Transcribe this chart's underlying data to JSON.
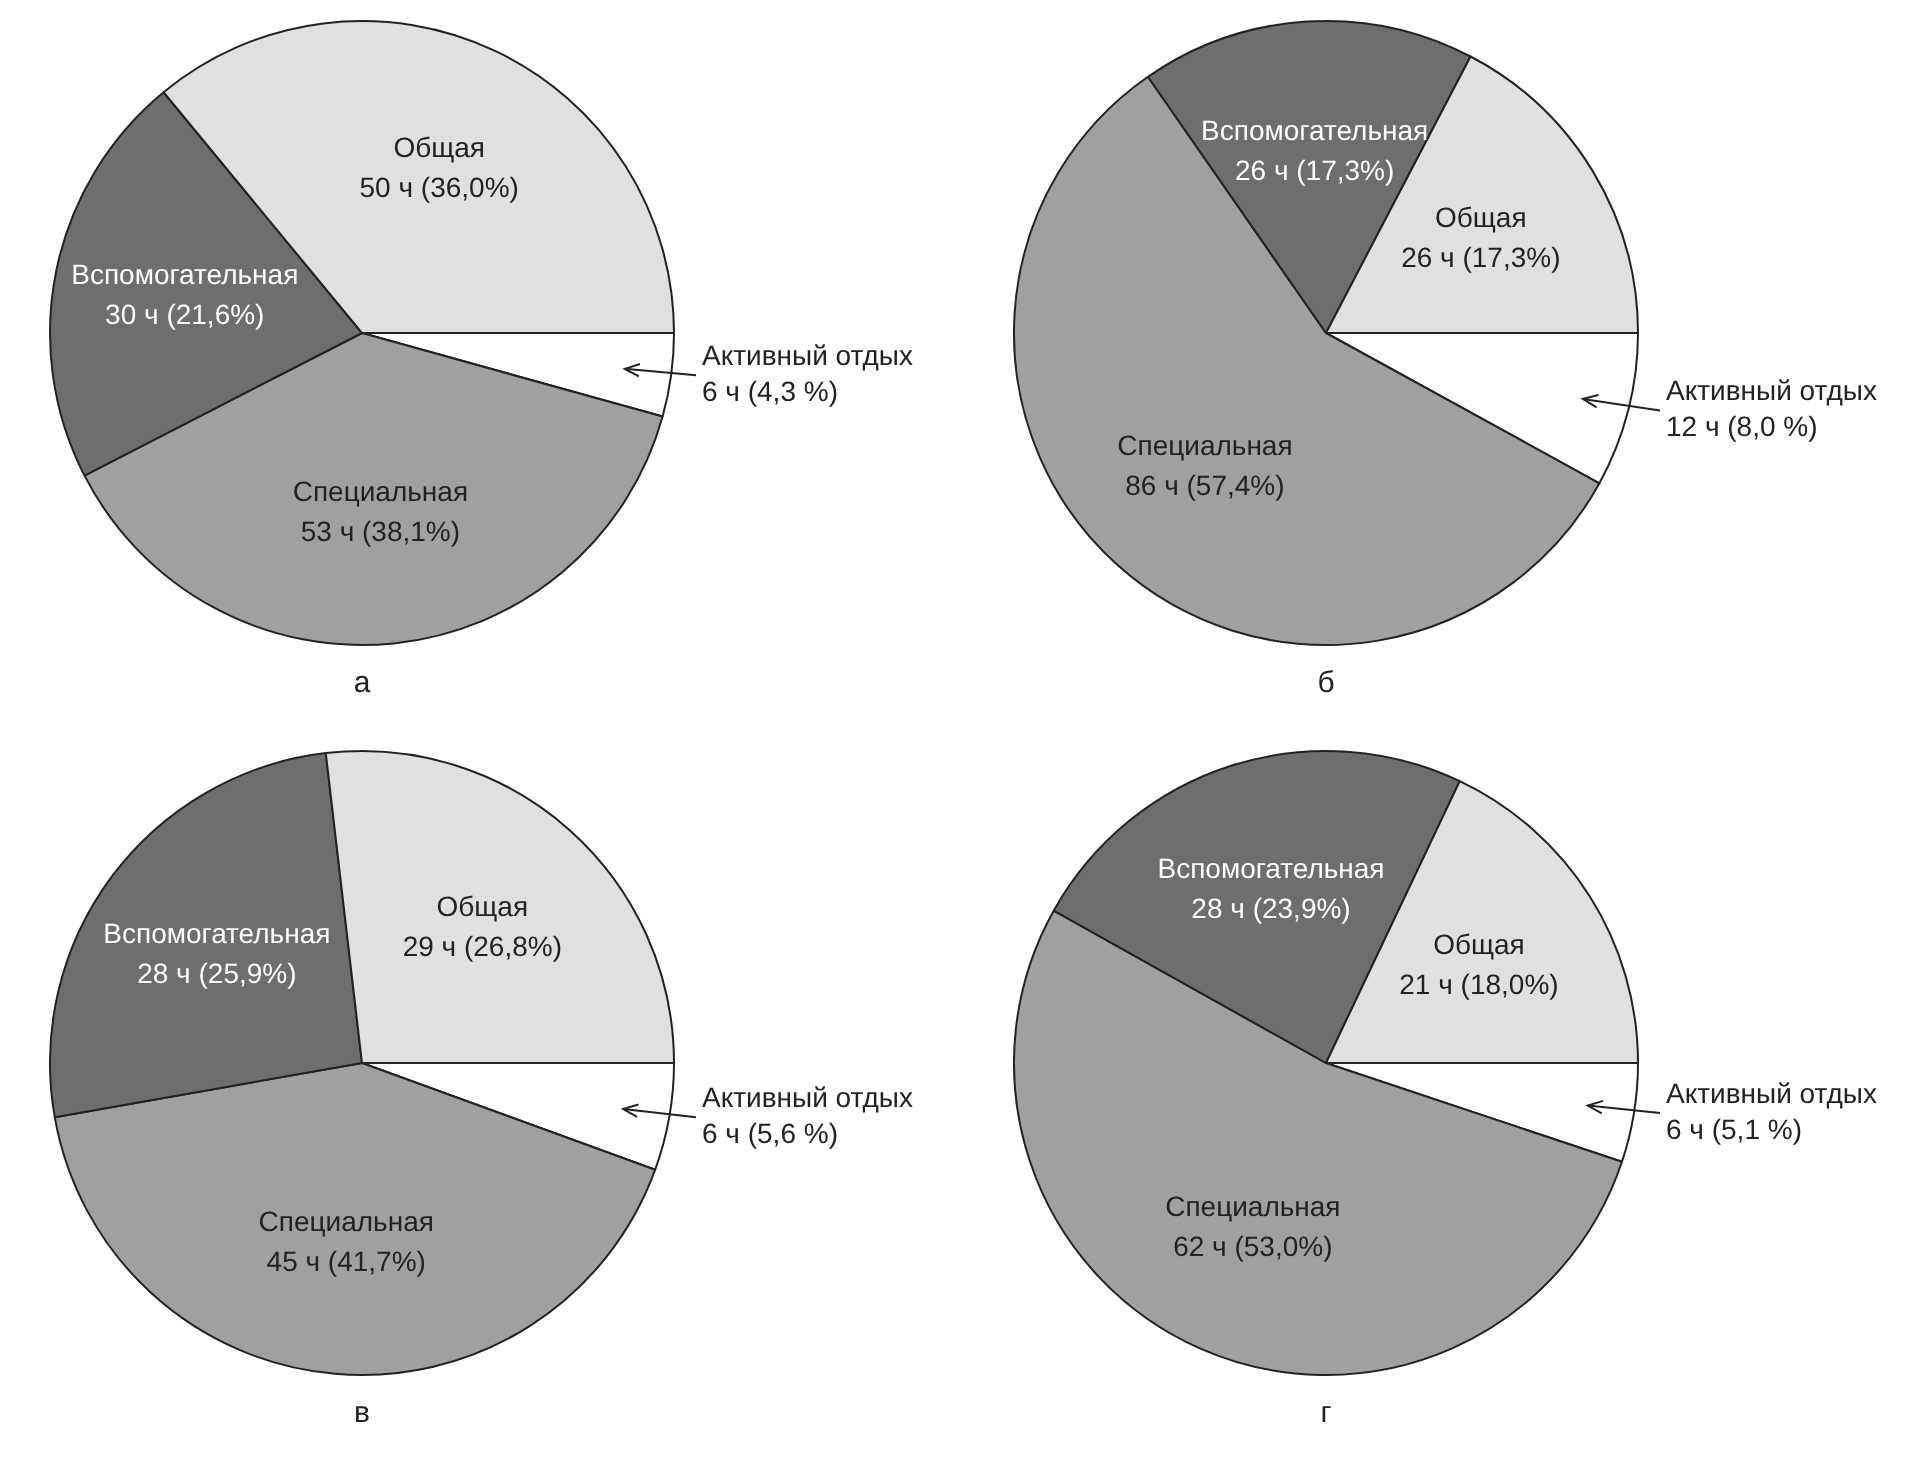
{
  "chart_data": [
    {
      "type": "pie",
      "title": "а",
      "categories": [
        "Активный отдых",
        "Специальная",
        "Вспомогательная",
        "Общая"
      ],
      "values": [
        6,
        53,
        30,
        50
      ],
      "colors": [
        "#ffffff",
        "#a0a0a0",
        "#6e6e6e",
        "#e0e0e0"
      ],
      "value_labels": [
        "6 ч (4,3 %)",
        "53 ч (38,1%)",
        "30 ч (21,6%)",
        "50 ч (36,0%)"
      ]
    },
    {
      "type": "pie",
      "title": "б",
      "categories": [
        "Активный отдых",
        "Специальная",
        "Вспомогательная",
        "Общая"
      ],
      "values": [
        12,
        86,
        26,
        26
      ],
      "colors": [
        "#ffffff",
        "#a0a0a0",
        "#6e6e6e",
        "#e0e0e0"
      ],
      "value_labels": [
        "12 ч (8,0 %)",
        "86 ч (57,4%)",
        "26 ч (17,3%)",
        "26 ч (17,3%)"
      ]
    },
    {
      "type": "pie",
      "title": "в",
      "categories": [
        "Активный отдых",
        "Специальная",
        "Вспомогательная",
        "Общая"
      ],
      "values": [
        6,
        45,
        28,
        29
      ],
      "colors": [
        "#ffffff",
        "#a0a0a0",
        "#6e6e6e",
        "#e0e0e0"
      ],
      "value_labels": [
        "6 ч (5,6 %)",
        "45 ч (41,7%)",
        "28 ч (25,9%)",
        "29 ч (26,8%)"
      ]
    },
    {
      "type": "pie",
      "title": "г",
      "categories": [
        "Активный отдых",
        "Специальная",
        "Вспомогательная",
        "Общая"
      ],
      "values": [
        6,
        62,
        28,
        21
      ],
      "colors": [
        "#ffffff",
        "#a0a0a0",
        "#6e6e6e",
        "#e0e0e0"
      ],
      "value_labels": [
        "6 ч (5,1 %)",
        "62 ч (53,0%)",
        "28 ч (23,9%)",
        "21 ч (18,0%)"
      ]
    }
  ]
}
